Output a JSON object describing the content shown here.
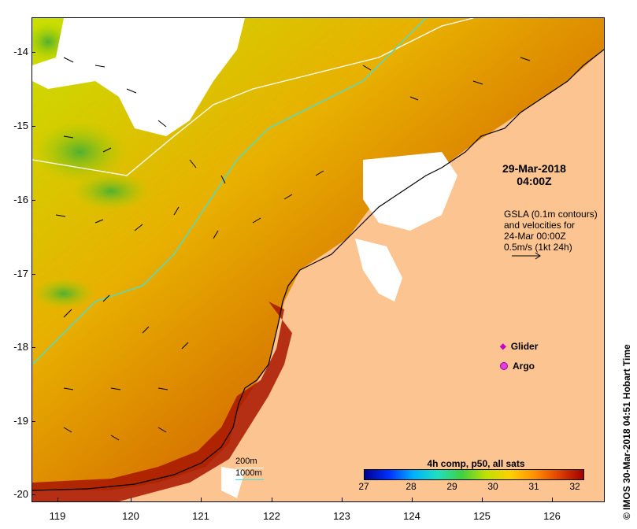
{
  "map": {
    "title_date": "29-Mar-2018",
    "title_time": "04:00Z",
    "gsla_lines": [
      "GSLA (0.1m contours)",
      "and velocities for",
      "24-Mar 00:00Z",
      "0.5m/s (1kt 24h)"
    ],
    "legend": {
      "glider": "Glider",
      "argo": "Argo"
    },
    "depth_legend": [
      "200m",
      "1000m"
    ],
    "colorbar": {
      "title": "4h comp, p50, all sats",
      "ticks": [
        "27",
        "28",
        "29",
        "30",
        "31",
        "32"
      ]
    },
    "credit": "© IMOS 30-Mar-2018 04:51 Hobart Time",
    "y_ticks": [
      "-14",
      "-15",
      "-16",
      "-17",
      "-18",
      "-19",
      "-20"
    ],
    "x_ticks": [
      "119",
      "120",
      "121",
      "122",
      "123",
      "124",
      "125",
      "126"
    ],
    "colors": {
      "land": "#fcc490",
      "sst_warm": "#a01000",
      "sst_mid": "#e08000",
      "sst_cool": "#d8e000",
      "sst_cold": "#30a030",
      "depth_200": "#ffffff",
      "depth_1000": "#40e0e0"
    }
  }
}
